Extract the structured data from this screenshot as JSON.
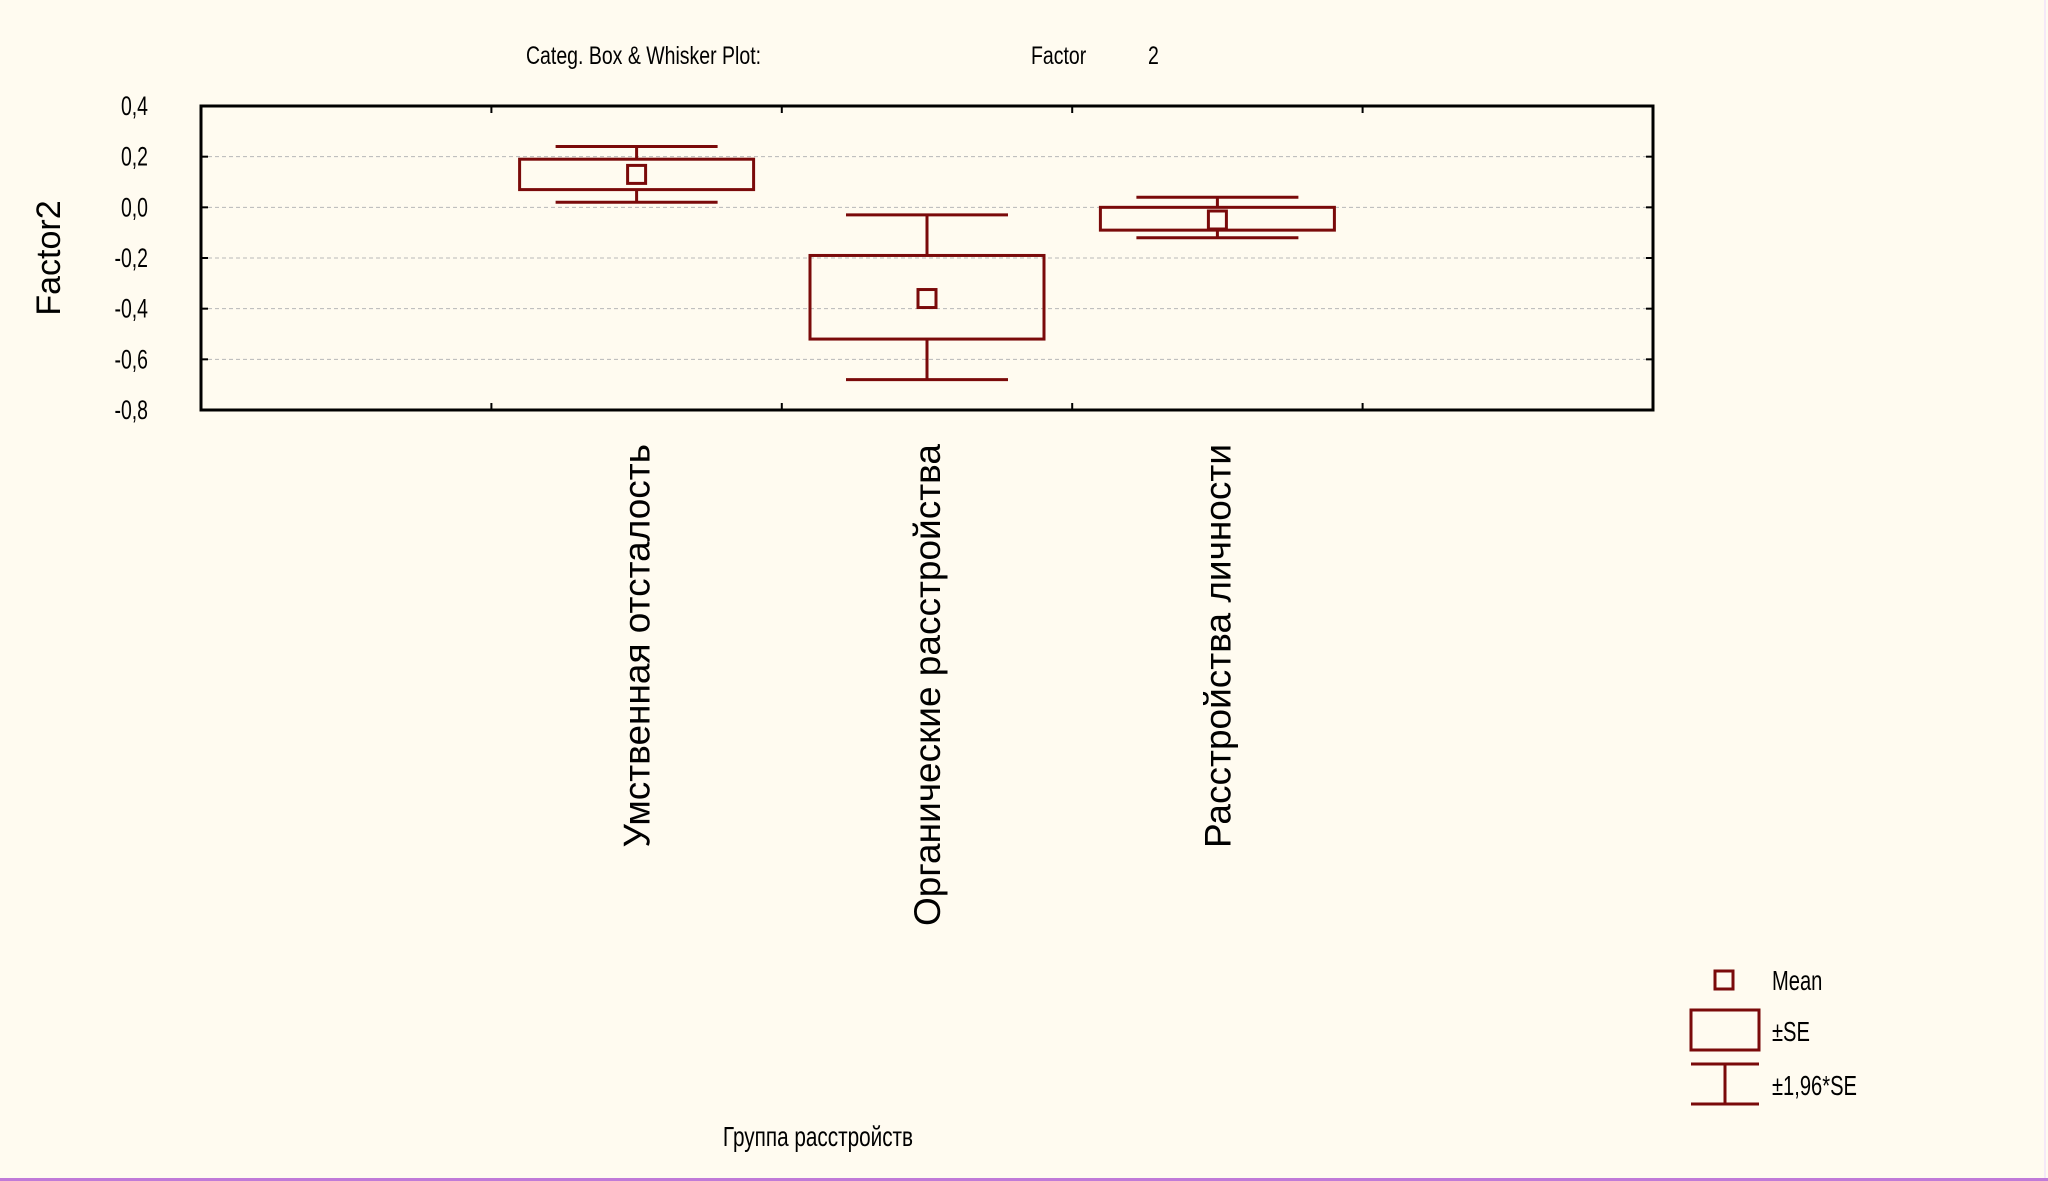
{
  "header": {
    "title": "Categ. Box & Whisker Plot:",
    "factor_label": "Factor",
    "factor_value": "2"
  },
  "legend": {
    "mean": "Mean",
    "se": "±SE",
    "ci": "±1,96*SE"
  },
  "colors": {
    "accent": "#7a0a0a",
    "background": "#fffbf0",
    "grid": "#b8b8b8"
  },
  "chart_data": {
    "type": "box",
    "title": "Categ. Box & Whisker Plot:",
    "ylabel": "Factor2",
    "xlabel": "Группа расстройств",
    "ylim": [
      -0.8,
      0.4
    ],
    "yticks": [
      "0,4",
      "0,2",
      "0,0",
      "-0,2",
      "-0,4",
      "-0,6",
      "-0,8"
    ],
    "grid": true,
    "legend_position": "bottom-right",
    "categories": [
      "Умственная отсталость",
      "Органические расстройства",
      "Расстройства личности"
    ],
    "series": [
      {
        "category": "Умственная отсталость",
        "mean": 0.13,
        "se_low": 0.07,
        "se_high": 0.19,
        "ci_low": 0.02,
        "ci_high": 0.24
      },
      {
        "category": "Органические расстройства",
        "mean": -0.36,
        "se_low": -0.52,
        "se_high": -0.19,
        "ci_low": -0.68,
        "ci_high": -0.03
      },
      {
        "category": "Расстройства личности",
        "mean": -0.05,
        "se_low": -0.09,
        "se_high": 0.0,
        "ci_low": -0.12,
        "ci_high": 0.04
      }
    ]
  }
}
